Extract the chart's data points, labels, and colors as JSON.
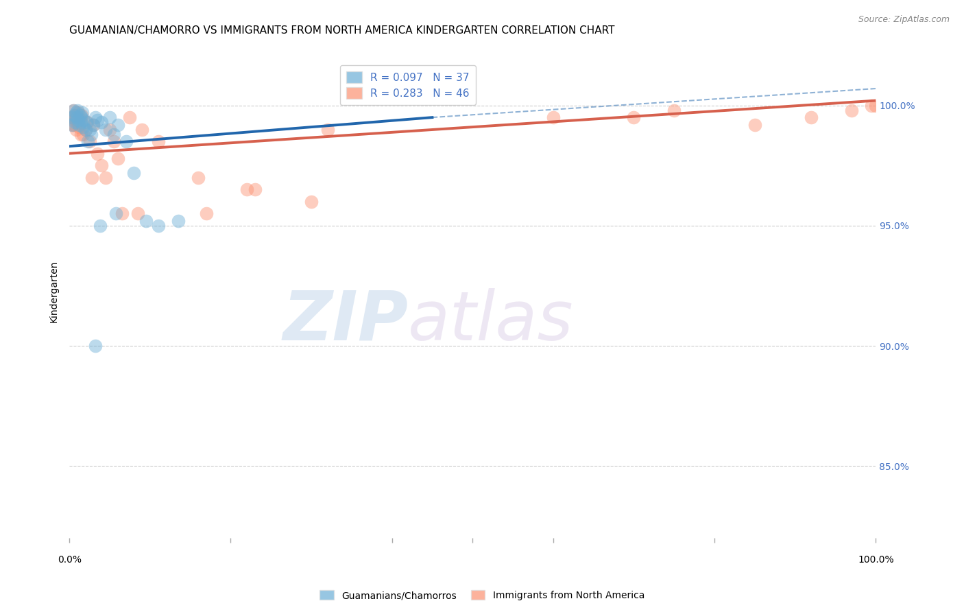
{
  "title": "GUAMANIAN/CHAMORRO VS IMMIGRANTS FROM NORTH AMERICA KINDERGARTEN CORRELATION CHART",
  "source": "Source: ZipAtlas.com",
  "ylabel": "Kindergarten",
  "yticks": [
    85.0,
    90.0,
    95.0,
    100.0
  ],
  "ytick_labels": [
    "85.0%",
    "90.0%",
    "95.0%",
    "100.0%"
  ],
  "xlim": [
    0.0,
    100.0
  ],
  "ylim": [
    82.0,
    102.5
  ],
  "legend_blue_r": "R = 0.097",
  "legend_blue_n": "N = 37",
  "legend_pink_r": "R = 0.283",
  "legend_pink_n": "N = 46",
  "blue_color": "#6baed6",
  "pink_color": "#fc9272",
  "blue_line_color": "#2166ac",
  "pink_line_color": "#d6604d",
  "blue_scatter_x": [
    0.3,
    0.4,
    0.5,
    0.6,
    0.7,
    0.8,
    0.9,
    1.0,
    1.1,
    1.2,
    1.3,
    1.4,
    1.5,
    1.6,
    1.7,
    1.8,
    2.0,
    2.1,
    2.3,
    2.5,
    2.7,
    3.0,
    3.2,
    3.5,
    4.0,
    4.5,
    5.0,
    5.5,
    6.0,
    7.0,
    8.0,
    9.5,
    11.0,
    13.5,
    3.8,
    5.8,
    3.2
  ],
  "blue_scatter_y": [
    99.2,
    99.5,
    99.8,
    99.6,
    99.3,
    99.7,
    99.5,
    99.8,
    99.4,
    99.2,
    99.6,
    99.3,
    99.5,
    99.7,
    99.1,
    99.4,
    99.0,
    99.3,
    98.5,
    99.0,
    98.8,
    99.2,
    99.5,
    99.4,
    99.3,
    99.0,
    99.5,
    98.8,
    99.2,
    98.5,
    97.2,
    95.2,
    95.0,
    95.2,
    95.0,
    95.5,
    90.0
  ],
  "pink_scatter_x": [
    0.3,
    0.4,
    0.5,
    0.6,
    0.7,
    0.8,
    0.9,
    1.0,
    1.1,
    1.2,
    1.3,
    1.5,
    1.7,
    2.0,
    2.2,
    2.5,
    3.0,
    3.5,
    4.0,
    4.5,
    5.0,
    5.5,
    6.0,
    7.5,
    9.0,
    11.0,
    16.0,
    22.0,
    30.0,
    100.0,
    0.6,
    0.8,
    1.4,
    2.8,
    6.5,
    8.5,
    17.0,
    23.0,
    32.0,
    60.0,
    70.0,
    75.0,
    85.0,
    92.0,
    97.0,
    99.5
  ],
  "pink_scatter_y": [
    99.5,
    99.2,
    99.8,
    99.4,
    99.6,
    99.0,
    99.3,
    99.5,
    99.7,
    99.1,
    99.4,
    99.6,
    98.8,
    99.0,
    99.3,
    98.5,
    99.2,
    98.0,
    97.5,
    97.0,
    99.0,
    98.5,
    97.8,
    99.5,
    99.0,
    98.5,
    97.0,
    96.5,
    96.0,
    100.0,
    99.2,
    99.5,
    98.8,
    97.0,
    95.5,
    95.5,
    95.5,
    96.5,
    99.0,
    99.5,
    99.5,
    99.8,
    99.2,
    99.5,
    99.8,
    100.0
  ],
  "blue_line_x_start": 0.0,
  "blue_line_x_end": 45.0,
  "blue_line_y_start": 98.3,
  "blue_line_y_end": 99.5,
  "pink_line_x_start": 0.0,
  "pink_line_x_end": 100.0,
  "pink_line_y_start": 98.0,
  "pink_line_y_end": 100.2,
  "blue_dash_x_start": 45.0,
  "blue_dash_x_end": 100.0,
  "blue_dash_y_start": 99.5,
  "blue_dash_y_end": 100.7,
  "watermark_zip": "ZIP",
  "watermark_atlas": "atlas",
  "background_color": "#ffffff",
  "grid_color": "#cccccc",
  "title_fontsize": 11,
  "axis_label_fontsize": 10,
  "tick_fontsize": 10,
  "legend_fontsize": 11
}
